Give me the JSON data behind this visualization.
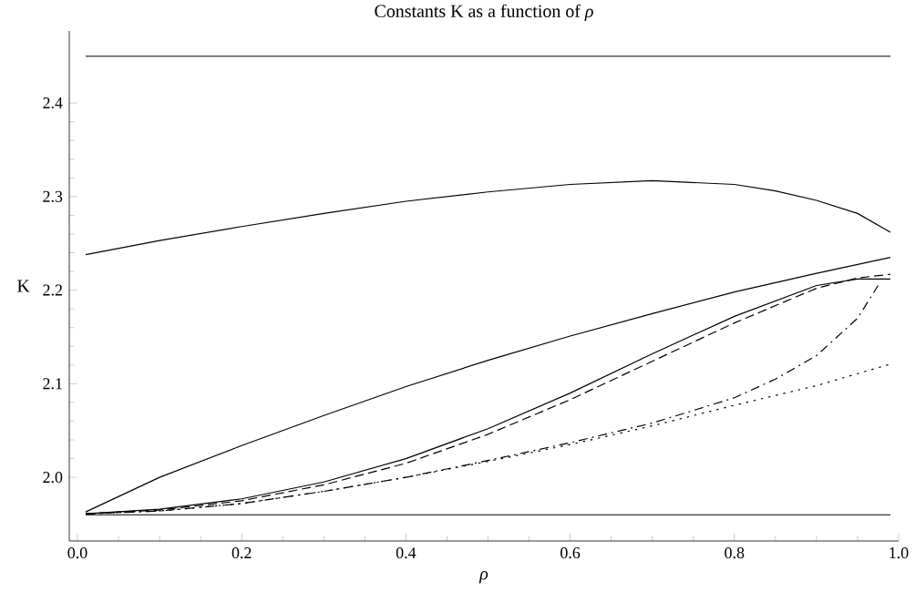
{
  "chart_data": {
    "type": "line",
    "title": "Constants K as a function of *ρ*",
    "xlabel": "*ρ*",
    "ylabel": "K",
    "xlim": [
      -0.01,
      1.0
    ],
    "ylim": [
      1.932,
      2.477
    ],
    "xticks": [
      {
        "value": 0,
        "label": "0.0"
      },
      {
        "value": 0.2,
        "label": "0.2"
      },
      {
        "value": 0.4,
        "label": "0.4"
      },
      {
        "value": 0.6,
        "label": "0.6"
      },
      {
        "value": 0.8,
        "label": "0.8"
      },
      {
        "value": 1,
        "label": "1.0"
      }
    ],
    "yticks": [
      {
        "value": 2,
        "label": "2.0"
      },
      {
        "value": 2.1,
        "label": "2.1"
      },
      {
        "value": 2.2,
        "label": "2.2"
      },
      {
        "value": 2.3,
        "label": "2.3"
      },
      {
        "value": 2.4,
        "label": "2.4"
      }
    ],
    "grid": false,
    "marker": "none",
    "series": [
      {
        "color": "#000000",
        "line_style": "solid",
        "x": [
          0.01,
          0.99
        ],
        "values": [
          2.45,
          2.45
        ]
      },
      {
        "color": "#000000",
        "line_style": "solid",
        "x": [
          0.01,
          0.1,
          0.2,
          0.3,
          0.4,
          0.5,
          0.6,
          0.7,
          0.8,
          0.85,
          0.9,
          0.95,
          0.99
        ],
        "values": [
          2.238,
          2.253,
          2.268,
          2.282,
          2.295,
          2.305,
          2.313,
          2.317,
          2.313,
          2.306,
          2.296,
          2.282,
          2.262
        ]
      },
      {
        "color": "#000000",
        "line_style": "solid",
        "x": [
          0.01,
          0.1,
          0.2,
          0.3,
          0.4,
          0.5,
          0.6,
          0.7,
          0.8,
          0.9,
          0.99
        ],
        "values": [
          1.963,
          2.0,
          2.034,
          2.066,
          2.097,
          2.125,
          2.151,
          2.175,
          2.198,
          2.218,
          2.235
        ]
      },
      {
        "color": "#000000",
        "line_style": "solid",
        "x": [
          0.01,
          0.1,
          0.2,
          0.3,
          0.4,
          0.5,
          0.6,
          0.7,
          0.8,
          0.9,
          0.95,
          0.99
        ],
        "values": [
          1.961,
          1.966,
          1.977,
          1.995,
          2.02,
          2.052,
          2.09,
          2.132,
          2.172,
          2.205,
          2.212,
          2.212
        ]
      },
      {
        "color": "#000000",
        "line_style": "dashed",
        "x": [
          0.01,
          0.1,
          0.2,
          0.3,
          0.4,
          0.5,
          0.6,
          0.7,
          0.8,
          0.9,
          0.95,
          0.99
        ],
        "values": [
          1.961,
          1.965,
          1.975,
          1.992,
          2.015,
          2.046,
          2.083,
          2.124,
          2.165,
          2.202,
          2.213,
          2.217
        ]
      },
      {
        "color": "#000000",
        "line_style": "dashdot",
        "x": [
          0.01,
          0.1,
          0.2,
          0.3,
          0.4,
          0.5,
          0.6,
          0.7,
          0.8,
          0.85,
          0.9,
          0.95,
          0.975
        ],
        "values": [
          1.961,
          1.964,
          1.972,
          1.985,
          2.0,
          2.018,
          2.037,
          2.058,
          2.085,
          2.105,
          2.13,
          2.17,
          2.205
        ]
      },
      {
        "color": "#000000",
        "line_style": "dotted",
        "x": [
          0.01,
          0.1,
          0.2,
          0.3,
          0.4,
          0.5,
          0.6,
          0.7,
          0.8,
          0.9,
          0.99
        ],
        "values": [
          1.961,
          1.964,
          1.972,
          1.985,
          2.0,
          2.017,
          2.035,
          2.055,
          2.077,
          2.098,
          2.121
        ]
      },
      {
        "color": "#000000",
        "line_style": "solid",
        "x": [
          0.01,
          0.99
        ],
        "values": [
          1.96,
          1.96
        ]
      }
    ]
  }
}
